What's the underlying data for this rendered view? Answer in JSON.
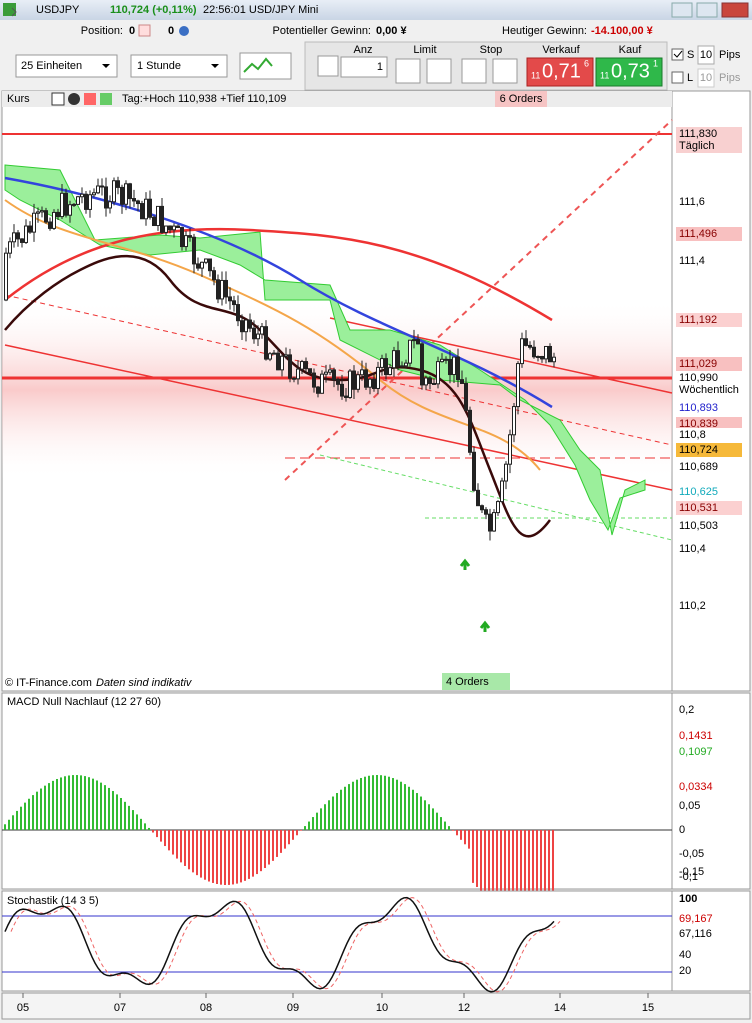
{
  "header": {
    "symbol": "USDJPY",
    "quote": "110,724 (+0,11%)",
    "time_name": "22:56:01 USD/JPY Mini"
  },
  "position_bar": {
    "position_label": "Position:",
    "position_value": "0",
    "position_value2": "0",
    "potential_label": "Potentieller Gewinn:",
    "potential_value": "0,00 ¥",
    "today_label": "Heutiger Gewinn:",
    "today_value": "-14.100,00 ¥"
  },
  "toolbar": {
    "units": "25 Einheiten",
    "interval": "1 Stunde",
    "anz_label": "Anz",
    "anz_value": "1",
    "limit_label": "Limit",
    "stop_label": "Stop",
    "sell_label": "Verkauf",
    "buy_label": "Kauf",
    "sell": {
      "prefix": "11",
      "main": "0,71",
      "suffix": "6"
    },
    "buy": {
      "prefix": "11",
      "main": "0,73",
      "suffix": "1"
    },
    "s_label": "S",
    "s_value": "10",
    "l_label": "L",
    "l_value": "10",
    "pips": "Pips"
  },
  "main_chart": {
    "title": "Kurs",
    "info": "Tag:+Hoch 110,938 +Tief 110,109",
    "orders_top": "6 Orders",
    "orders_bottom": "4 Orders",
    "footer_copy": "© IT-Finance.com",
    "footer_note": "Daten sind indikativ",
    "price_labels": [
      {
        "text": "111,830",
        "note": "Täglich"
      },
      {
        "text": "111,6"
      },
      {
        "text": "111,496"
      },
      {
        "text": "111,4"
      },
      {
        "text": "111,192"
      },
      {
        "text": "111,029"
      },
      {
        "text": "110,990",
        "note": "Wöchentlich"
      },
      {
        "text": "110,893"
      },
      {
        "text": "110,839"
      },
      {
        "text": "110,8"
      },
      {
        "text": "110,724"
      },
      {
        "text": "110,689"
      },
      {
        "text": "110,625"
      },
      {
        "text": "110,531"
      },
      {
        "text": "110,503"
      },
      {
        "text": "110,4"
      },
      {
        "text": "110,2"
      }
    ]
  },
  "macd": {
    "title": "MACD Null Nachlauf (12 27 60)",
    "labels": [
      "0,2",
      "0,1431",
      "0,1097",
      "0,05",
      "0,0334",
      "0",
      "-0,05",
      "-0,1",
      "-0,15"
    ]
  },
  "stochastic": {
    "title": "Stochastik (14 3 5)",
    "labels": [
      "100",
      "69,167",
      "67,116",
      "40",
      "20"
    ]
  },
  "x_axis": [
    "05",
    "07",
    "08",
    "09",
    "10",
    "12",
    "14",
    "15"
  ]
}
